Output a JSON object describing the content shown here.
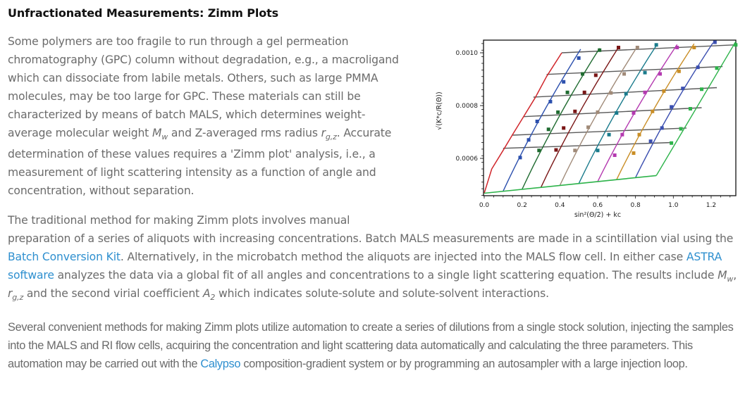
{
  "article": {
    "title": "Unfractionated Measurements: Zimm Plots",
    "p1": {
      "lines": [
        "Some polymers are too fragile to run through a gel permeation",
        "chromatography (GPC) column without degradation, e.g., a macroligand",
        "which can dissociate from labile metals. Others, such as large PMMA",
        "molecules, may be too large for GPC. These materials can still be",
        "characterized by means of batch MALS, which determines weight-"
      ],
      "line6_pre": "average molecular weight ",
      "mw_var": "M",
      "mw_sub": "w",
      "line6_mid": " and Z-averaged rms radius ",
      "rg_var": "r",
      "rg_sub": "g,z",
      "line6_post": ". Accurate",
      "lines_after": [
        "determination of these values requires a 'Zimm plot' analysis, i.e., a",
        "measurement of light scattering intensity as a function of angle and",
        "concentration, without separation."
      ]
    },
    "p2": {
      "line1": "The traditional method for making Zimm plots involves manual",
      "text_a": "preparation of a series of aliquots with increasing concentrations. Batch MALS measurements are made in a scintillation vial using the ",
      "link1": "Batch Conversion Kit",
      "text_b": ". Alternatively, in the microbatch method the aliquots are injected into the MALS flow cell. In either case ",
      "link2": "ASTRA software",
      "text_c": " analyzes the data via a global fit of all angles and concentrations to a single light scattering equation. The results include ",
      "mw_var": "M",
      "mw_sub": "w",
      "comma": ", ",
      "rg_var": "r",
      "rg_sub": "g,z",
      "text_d": " and the second virial coefficient ",
      "a2_var": "A",
      "a2_sub": "2",
      "text_e": " which indicates solute-solute and solute-solvent interactions."
    },
    "p3": {
      "text_a": "Several convenient methods for making Zimm plots utilize automation to create a series of dilutions from a single stock solution, injecting the samples into the MALS and RI flow cells, acquiring the concentration and light scattering data automatically and calculating the three parameters. This automation may be carried out with the ",
      "link": "Calypso",
      "text_b": " composition-gradient system or by programming an autosampler with a large injection loop."
    },
    "link_color": "#2e8fcf"
  },
  "chart_data": {
    "type": "line",
    "title": "",
    "xlabel": "sin²(Θ/2) + kc",
    "ylabel": "√(K*c/R(Θ))",
    "xlim": [
      0.0,
      1.33
    ],
    "ylim": [
      0.000458,
      0.00105
    ],
    "x_ticks": [
      "0.0",
      "0.2",
      "0.4",
      "0.6",
      "0.8",
      "1.0",
      "1.2"
    ],
    "x_tick_values": [
      0.0,
      0.2,
      0.4,
      0.6,
      0.8,
      1.0,
      1.2
    ],
    "y_ticks": [
      "0.0006",
      "0.0008",
      "0.0010"
    ],
    "y_tick_values": [
      0.0006,
      0.0008,
      0.001
    ],
    "grid": false,
    "legend": null,
    "c0_extrapolation": {
      "color": "#2db34a",
      "x": [
        0.0,
        0.91
      ],
      "y": [
        0.000468,
        0.000535
      ]
    },
    "theta0_extrapolation": {
      "color": "#d0262b",
      "x": [
        0.0,
        0.04,
        0.1,
        0.15,
        0.21,
        0.27,
        0.33,
        0.41
      ],
      "y": [
        0.000468,
        0.00056,
        0.00063,
        0.00069,
        0.00076,
        0.00083,
        0.00091,
        0.001
      ]
    },
    "concentration_series": {
      "color": "#5a5a5a",
      "lines": [
        {
          "x": [
            0.1,
            0.99
          ],
          "y": [
            0.000638,
            0.00066
          ]
        },
        {
          "x": [
            0.15,
            1.07
          ],
          "y": [
            0.000688,
            0.000715
          ]
        },
        {
          "x": [
            0.21,
            1.15
          ],
          "y": [
            0.000758,
            0.000792
          ]
        },
        {
          "x": [
            0.26,
            1.23
          ],
          "y": [
            0.000832,
            0.000868
          ]
        },
        {
          "x": [
            0.33,
            1.26
          ],
          "y": [
            0.000918,
            0.000948
          ]
        },
        {
          "x": [
            0.41,
            1.33
          ],
          "y": [
            0.001,
            0.00103
          ]
        }
      ]
    },
    "angle_series": [
      {
        "color": "#2b4fad",
        "x0": 0.1,
        "x1": 0.51,
        "points": [
          [
            0.19,
            0.000603
          ],
          [
            0.235,
            0.00067
          ],
          [
            0.28,
            0.00074
          ],
          [
            0.35,
            0.000815
          ],
          [
            0.42,
            0.00089
          ],
          [
            0.5,
            0.00098
          ]
        ]
      },
      {
        "color": "#1f6b30",
        "x0": 0.2,
        "x1": 0.61,
        "points": [
          [
            0.29,
            0.00063
          ],
          [
            0.34,
            0.00071
          ],
          [
            0.39,
            0.000775
          ],
          [
            0.44,
            0.00085
          ],
          [
            0.52,
            0.00092
          ],
          [
            0.61,
            0.00101
          ]
        ]
      },
      {
        "color": "#7a1616",
        "x0": 0.3,
        "x1": 0.71,
        "points": [
          [
            0.38,
            0.000632
          ],
          [
            0.42,
            0.000715
          ],
          [
            0.48,
            0.000778
          ],
          [
            0.53,
            0.00085
          ],
          [
            0.59,
            0.000915
          ],
          [
            0.71,
            0.00102
          ]
        ]
      },
      {
        "color": "#a08a78",
        "x0": 0.4,
        "x1": 0.81,
        "points": [
          [
            0.48,
            0.00063
          ],
          [
            0.55,
            0.000718
          ],
          [
            0.6,
            0.000775
          ],
          [
            0.67,
            0.000848
          ],
          [
            0.74,
            0.00092
          ],
          [
            0.81,
            0.00102
          ]
        ]
      },
      {
        "color": "#1a7b8c",
        "x0": 0.5,
        "x1": 0.91,
        "points": [
          [
            0.6,
            0.00063
          ],
          [
            0.66,
            0.00069
          ],
          [
            0.7,
            0.000772
          ],
          [
            0.75,
            0.000845
          ],
          [
            0.85,
            0.000925
          ],
          [
            0.91,
            0.00103
          ]
        ]
      },
      {
        "color": "#b43ab0",
        "x0": 0.6,
        "x1": 1.02,
        "points": [
          [
            0.69,
            0.000612
          ],
          [
            0.73,
            0.00069
          ],
          [
            0.79,
            0.000772
          ],
          [
            0.85,
            0.00085
          ],
          [
            0.93,
            0.00092
          ],
          [
            1.02,
            0.00102
          ]
        ]
      },
      {
        "color": "#c98e26",
        "x0": 0.7,
        "x1": 1.11,
        "points": [
          [
            0.79,
            0.00062
          ],
          [
            0.82,
            0.00069
          ],
          [
            0.89,
            0.000778
          ],
          [
            0.95,
            0.000855
          ],
          [
            1.03,
            0.00093
          ],
          [
            1.11,
            0.00102
          ]
        ]
      },
      {
        "color": "#3b4fb0",
        "x0": 0.8,
        "x1": 1.21,
        "points": [
          [
            0.88,
            0.000665
          ],
          [
            0.94,
            0.000715
          ],
          [
            0.99,
            0.000795
          ],
          [
            1.05,
            0.000865
          ],
          [
            1.13,
            0.000945
          ],
          [
            1.22,
            0.00104
          ]
        ]
      },
      {
        "color": "#2db34a",
        "x0": 0.91,
        "x1": 1.33,
        "points": [
          [
            0.99,
            0.000658
          ],
          [
            1.04,
            0.000712
          ],
          [
            1.09,
            0.000788
          ],
          [
            1.15,
            0.000862
          ],
          [
            1.23,
            0.000942
          ],
          [
            1.33,
            0.00103
          ]
        ]
      }
    ]
  }
}
